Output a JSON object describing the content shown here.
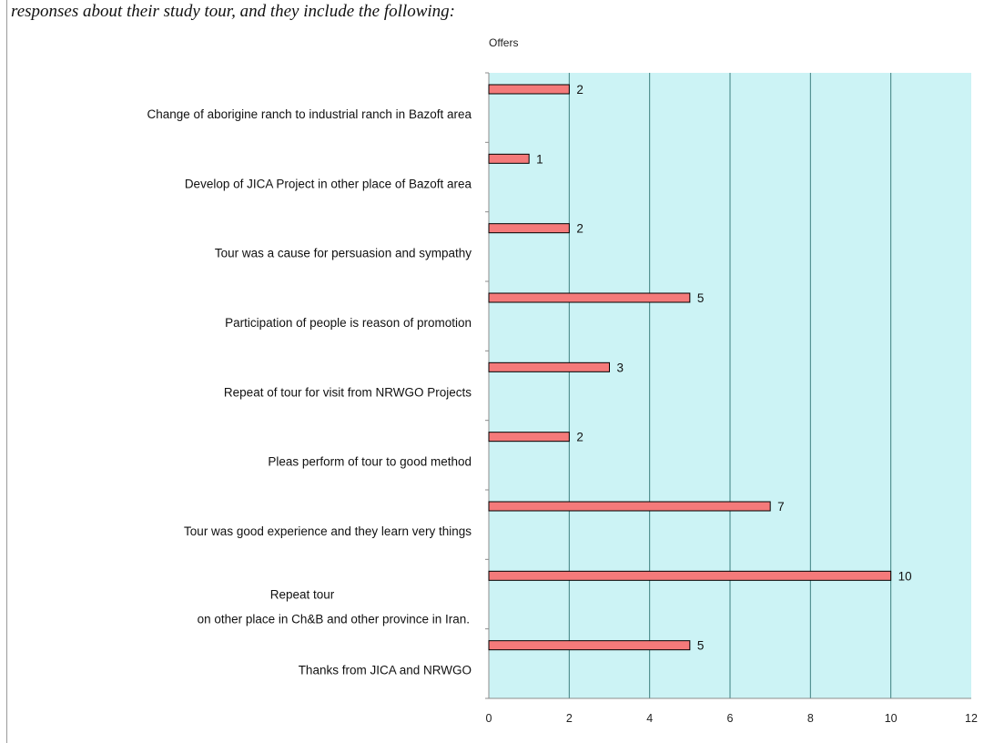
{
  "page": {
    "header_text": "responses about their study tour, and they include the following:"
  },
  "chart_data": {
    "type": "bar",
    "orientation": "horizontal",
    "title": "Offers",
    "xlabel": "",
    "ylabel": "",
    "xlim": [
      0,
      12
    ],
    "x_ticks": [
      0,
      2,
      4,
      6,
      8,
      10,
      12
    ],
    "grid": true,
    "legend": "none",
    "plot_background": "#ccf3f5",
    "bar_color": "#f47a7a",
    "bar_border_color": "#000000",
    "gridline_color": "#3d7f7f",
    "categories": [
      [
        "Change of  aborigine ranch  to industrial ranch in Bazoft area"
      ],
      [
        "Develop of JICA Project in other place of Bazoft area"
      ],
      [
        "Tour was  a cause for persuasion and sympathy"
      ],
      [
        "Participation of people is  reason of promotion"
      ],
      [
        "Repeat of tour for visit from NRWGO Projects"
      ],
      [
        "Pleas perform  of tour to good method"
      ],
      [
        "Tour was good experience and they learn very things"
      ],
      [
        "Repeat tour",
        "on other place in Ch&B  and  other province in Iran."
      ],
      [
        "Thanks  from JICA and NRWGO"
      ]
    ],
    "values": [
      2,
      1,
      2,
      5,
      3,
      2,
      7,
      10,
      5
    ]
  }
}
